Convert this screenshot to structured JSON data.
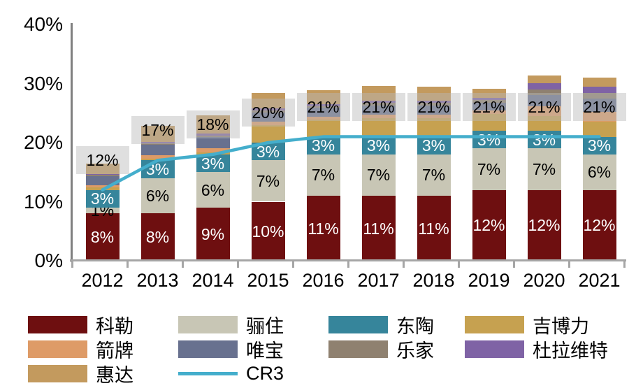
{
  "chart_data": {
    "type": "bar",
    "stacked": true,
    "title": "",
    "xlabel": "",
    "ylabel": "",
    "ylim": [
      0,
      40
    ],
    "grid": false,
    "categories": [
      "2012",
      "2013",
      "2014",
      "2015",
      "2016",
      "2017",
      "2018",
      "2019",
      "2020",
      "2021"
    ],
    "yticks": [
      {
        "value": 0,
        "label": "0%"
      },
      {
        "value": 10,
        "label": "10%"
      },
      {
        "value": 20,
        "label": "20%"
      },
      {
        "value": 30,
        "label": "30%"
      },
      {
        "value": 40,
        "label": "40%"
      }
    ],
    "series": [
      {
        "name": "科勒",
        "color": "#6e0f10",
        "label_color": "#ffffff",
        "values": [
          8,
          8,
          9,
          10,
          11,
          11,
          11,
          12,
          12,
          12
        ],
        "labels": [
          "8%",
          "8%",
          "9%",
          "10%",
          "11%",
          "11%",
          "11%",
          "12%",
          "12%",
          "12%"
        ]
      },
      {
        "name": "骊住",
        "color": "#c8c6b5",
        "label_color": "#000000",
        "values": [
          1,
          6,
          6,
          7,
          7,
          7,
          7,
          7,
          7,
          6
        ],
        "labels": [
          "1%",
          "6%",
          "6%",
          "7%",
          "7%",
          "7%",
          "7%",
          "7%",
          "7%",
          "6%"
        ]
      },
      {
        "name": "东陶",
        "color": "#36859b",
        "label_color": "#ffffff",
        "values": [
          3,
          3,
          3,
          3,
          3,
          3,
          3,
          3,
          3,
          3
        ],
        "labels": [
          "3%",
          "3%",
          "3%",
          "3%",
          "3%",
          "3%",
          "3%",
          "3%",
          "3%",
          "3%"
        ]
      },
      {
        "name": "吉博力",
        "color": "#c6a150",
        "values": [
          0.4,
          0.3,
          0.4,
          3.0,
          2.9,
          3.1,
          3.1,
          2.9,
          2.5,
          2.5
        ]
      },
      {
        "name": "箭牌",
        "color": "#de9b67",
        "values": [
          0.4,
          0.6,
          0.6,
          0.5,
          0.5,
          0.6,
          0.6,
          0.5,
          1.6,
          1.7
        ]
      },
      {
        "name": "唯宝",
        "color": "#68718f",
        "values": [
          1.5,
          1.7,
          1.9,
          1.6,
          1.5,
          1.6,
          1.6,
          1.4,
          2.0,
          2.2
        ]
      },
      {
        "name": "乐家",
        "color": "#8f8170",
        "values": [
          0.2,
          0.3,
          0.3,
          0.3,
          0.3,
          0.4,
          0.4,
          0.4,
          0.95,
          1.0
        ]
      },
      {
        "name": "杜拉维特",
        "color": "#7f63a5",
        "values": [
          0.2,
          0.2,
          0.3,
          0.4,
          0.3,
          0.4,
          0.4,
          0.4,
          1.05,
          1.1
        ]
      },
      {
        "name": "惠达",
        "color": "#c39a5e",
        "values": [
          1.8,
          2.7,
          3.1,
          2.6,
          2.4,
          2.5,
          2.4,
          1.5,
          1.3,
          1.5
        ]
      }
    ],
    "line_series": {
      "name": "CR3",
      "color": "#44aecc",
      "values": [
        12,
        17,
        18,
        20,
        21,
        21,
        21,
        21,
        21,
        21
      ],
      "labels": [
        "12%",
        "17%",
        "18%",
        "20%",
        "21%",
        "21%",
        "21%",
        "21%",
        "21%",
        "21%"
      ]
    },
    "legend": {
      "position": "bottom",
      "columns": 4,
      "items": [
        {
          "label": "科勒",
          "color": "#6e0f10",
          "type": "bar"
        },
        {
          "label": "骊住",
          "color": "#c8c6b5",
          "type": "bar"
        },
        {
          "label": "东陶",
          "color": "#36859b",
          "type": "bar"
        },
        {
          "label": "吉博力",
          "color": "#c6a150",
          "type": "bar"
        },
        {
          "label": "箭牌",
          "color": "#de9b67",
          "type": "bar"
        },
        {
          "label": "唯宝",
          "color": "#68718f",
          "type": "bar"
        },
        {
          "label": "乐家",
          "color": "#8f8170",
          "type": "bar"
        },
        {
          "label": "杜拉维特",
          "color": "#7f63a5",
          "type": "bar"
        },
        {
          "label": "惠达",
          "color": "#c39a5e",
          "type": "bar"
        },
        {
          "label": "CR3",
          "color": "#44aecc",
          "type": "line"
        }
      ]
    },
    "colors": {
      "label_highlight": "rgba(185,185,185,0.45)",
      "axis_vertical": "#808080",
      "axis_horizontal": "#a6a6a6",
      "background": "#ffffff"
    }
  }
}
